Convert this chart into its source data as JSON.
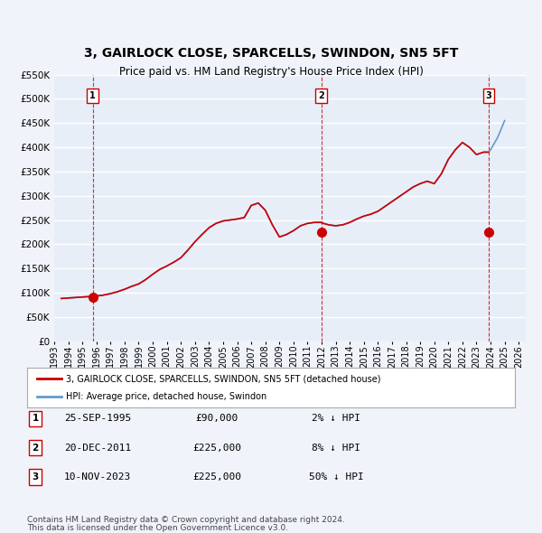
{
  "title": "3, GAIRLOCK CLOSE, SPARCELLS, SWINDON, SN5 5FT",
  "subtitle": "Price paid vs. HM Land Registry's House Price Index (HPI)",
  "bg_color": "#f0f4fa",
  "plot_bg_color": "#e8eef8",
  "grid_color": "#ffffff",
  "red_line_color": "#cc0000",
  "blue_line_color": "#6699cc",
  "ylim": [
    0,
    550000
  ],
  "yticks": [
    0,
    50000,
    100000,
    150000,
    200000,
    250000,
    300000,
    350000,
    400000,
    450000,
    500000,
    550000
  ],
  "ytick_labels": [
    "£0",
    "£50K",
    "£100K",
    "£150K",
    "£200K",
    "£250K",
    "£300K",
    "£350K",
    "£400K",
    "£450K",
    "£500K",
    "£550K"
  ],
  "xlim_start": 1993.0,
  "xlim_end": 2026.5,
  "xticks": [
    1993,
    1994,
    1995,
    1996,
    1997,
    1998,
    1999,
    2000,
    2001,
    2002,
    2003,
    2004,
    2005,
    2006,
    2007,
    2008,
    2009,
    2010,
    2011,
    2012,
    2013,
    2014,
    2015,
    2016,
    2017,
    2018,
    2019,
    2020,
    2021,
    2022,
    2023,
    2024,
    2025,
    2026
  ],
  "sale_dates": [
    1995.73,
    2011.97,
    2023.86
  ],
  "sale_prices": [
    90000,
    225000,
    225000
  ],
  "sale_labels": [
    "1",
    "2",
    "3"
  ],
  "legend_red_label": "3, GAIRLOCK CLOSE, SPARCELLS, SWINDON, SN5 5FT (detached house)",
  "legend_blue_label": "HPI: Average price, detached house, Swindon",
  "table_rows": [
    [
      "1",
      "25-SEP-1995",
      "£90,000",
      "2% ↓ HPI"
    ],
    [
      "2",
      "20-DEC-2011",
      "£225,000",
      "8% ↓ HPI"
    ],
    [
      "3",
      "10-NOV-2023",
      "£225,000",
      "50% ↓ HPI"
    ]
  ],
  "footnote1": "Contains HM Land Registry data © Crown copyright and database right 2024.",
  "footnote2": "This data is licensed under the Open Government Licence v3.0.",
  "hpi_x": [
    1993.5,
    1994.0,
    1994.5,
    1995.0,
    1995.5,
    1995.73,
    1996.0,
    1996.5,
    1997.0,
    1997.5,
    1998.0,
    1998.5,
    1999.0,
    1999.5,
    2000.0,
    2000.5,
    2001.0,
    2001.5,
    2002.0,
    2002.5,
    2003.0,
    2003.5,
    2004.0,
    2004.5,
    2005.0,
    2005.5,
    2006.0,
    2006.5,
    2007.0,
    2007.5,
    2008.0,
    2008.5,
    2009.0,
    2009.5,
    2010.0,
    2010.5,
    2011.0,
    2011.5,
    2011.97,
    2012.0,
    2012.5,
    2013.0,
    2013.5,
    2014.0,
    2014.5,
    2015.0,
    2015.5,
    2016.0,
    2016.5,
    2017.0,
    2017.5,
    2018.0,
    2018.5,
    2019.0,
    2019.5,
    2020.0,
    2020.5,
    2021.0,
    2021.5,
    2022.0,
    2022.5,
    2023.0,
    2023.5,
    2023.86,
    2024.0,
    2024.5,
    2025.0
  ],
  "hpi_y": [
    88000,
    89000,
    90000,
    91000,
    92000,
    92000,
    93000,
    95000,
    98000,
    102000,
    107000,
    113000,
    118000,
    127000,
    138000,
    148000,
    155000,
    163000,
    172000,
    188000,
    205000,
    220000,
    234000,
    243000,
    248000,
    250000,
    252000,
    255000,
    280000,
    285000,
    270000,
    240000,
    215000,
    220000,
    228000,
    238000,
    243000,
    245000,
    245000,
    244000,
    240000,
    238000,
    240000,
    245000,
    252000,
    258000,
    262000,
    268000,
    278000,
    288000,
    298000,
    308000,
    318000,
    325000,
    330000,
    325000,
    345000,
    375000,
    395000,
    410000,
    400000,
    385000,
    390000,
    390000,
    395000,
    420000,
    455000
  ],
  "red_hpi_x": [
    1993.5,
    1994.0,
    1994.5,
    1995.0,
    1995.5,
    1995.73,
    1996.0,
    1996.5,
    1997.0,
    1997.5,
    1998.0,
    1998.5,
    1999.0,
    1999.5,
    2000.0,
    2000.5,
    2001.0,
    2001.5,
    2002.0,
    2002.5,
    2003.0,
    2003.5,
    2004.0,
    2004.5,
    2005.0,
    2005.5,
    2006.0,
    2006.5,
    2007.0,
    2007.5,
    2008.0,
    2008.5,
    2009.0,
    2009.5,
    2010.0,
    2010.5,
    2011.0,
    2011.5,
    2011.97,
    2012.0,
    2012.5,
    2013.0,
    2013.5,
    2014.0,
    2014.5,
    2015.0,
    2015.5,
    2016.0,
    2016.5,
    2017.0,
    2017.5,
    2018.0,
    2018.5,
    2019.0,
    2019.5,
    2020.0,
    2020.5,
    2021.0,
    2021.5,
    2022.0,
    2022.5,
    2023.0,
    2023.5,
    2023.86
  ],
  "red_hpi_y": [
    88000,
    89000,
    90000,
    91000,
    92000,
    92000,
    93000,
    95000,
    98000,
    102000,
    107000,
    113000,
    118000,
    127000,
    138000,
    148000,
    155000,
    163000,
    172000,
    188000,
    205000,
    220000,
    234000,
    243000,
    248000,
    250000,
    252000,
    255000,
    280000,
    285000,
    270000,
    240000,
    215000,
    220000,
    228000,
    238000,
    243000,
    245000,
    245000,
    244000,
    240000,
    238000,
    240000,
    245000,
    252000,
    258000,
    262000,
    268000,
    278000,
    288000,
    298000,
    308000,
    318000,
    325000,
    330000,
    325000,
    345000,
    375000,
    395000,
    410000,
    400000,
    385000,
    390000,
    390000
  ]
}
